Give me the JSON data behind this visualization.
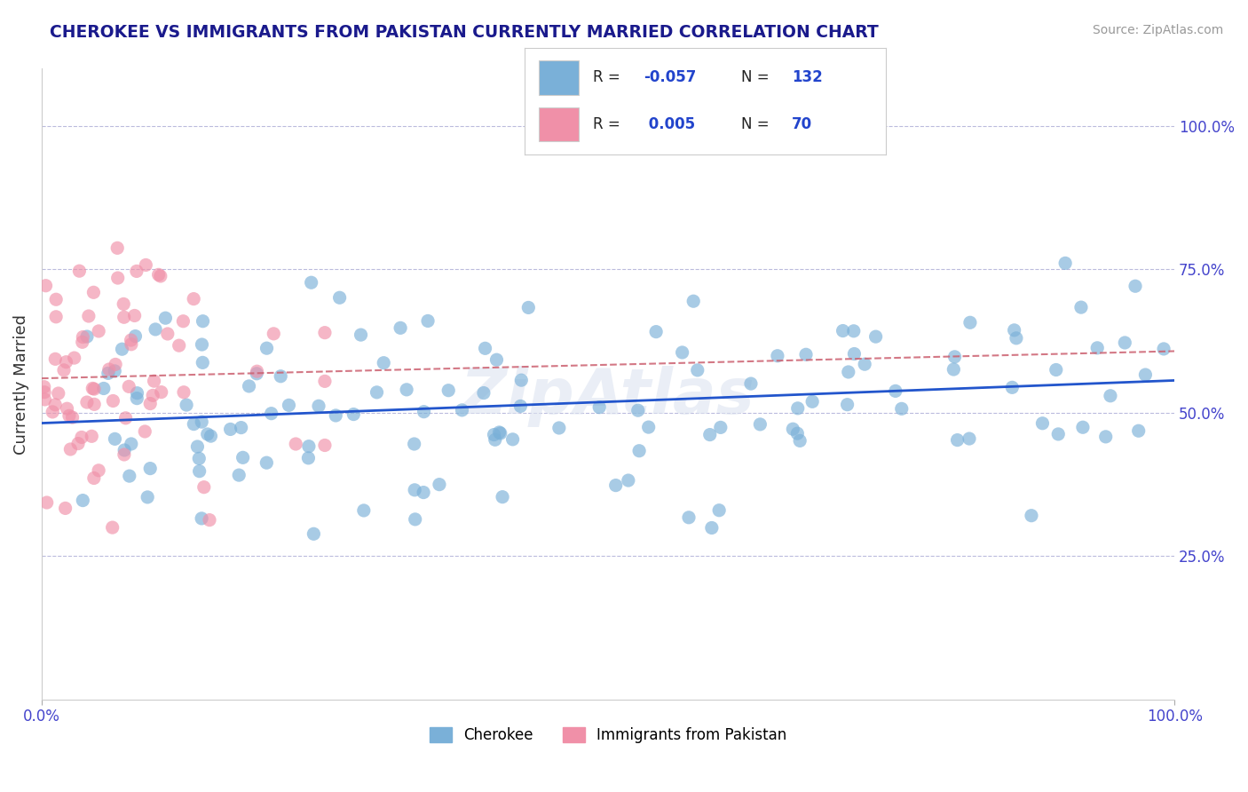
{
  "title": "CHEROKEE VS IMMIGRANTS FROM PAKISTAN CURRENTLY MARRIED CORRELATION CHART",
  "source": "Source: ZipAtlas.com",
  "ylabel": "Currently Married",
  "ylabel_right_labels": [
    "25.0%",
    "50.0%",
    "75.0%",
    "100.0%"
  ],
  "ylabel_right_positions": [
    0.25,
    0.5,
    0.75,
    1.0
  ],
  "legend_bottom": [
    "Cherokee",
    "Immigrants from Pakistan"
  ],
  "title_color": "#1a1a8c",
  "axis_color": "#4444cc",
  "blue_color": "#7ab0d8",
  "pink_color": "#f090a8",
  "trend_blue": "#2255cc",
  "trend_pink": "#cc6070",
  "blue_R": -0.057,
  "pink_R": 0.005,
  "blue_N": 132,
  "pink_N": 70,
  "seed_blue": 42,
  "seed_pink": 99
}
